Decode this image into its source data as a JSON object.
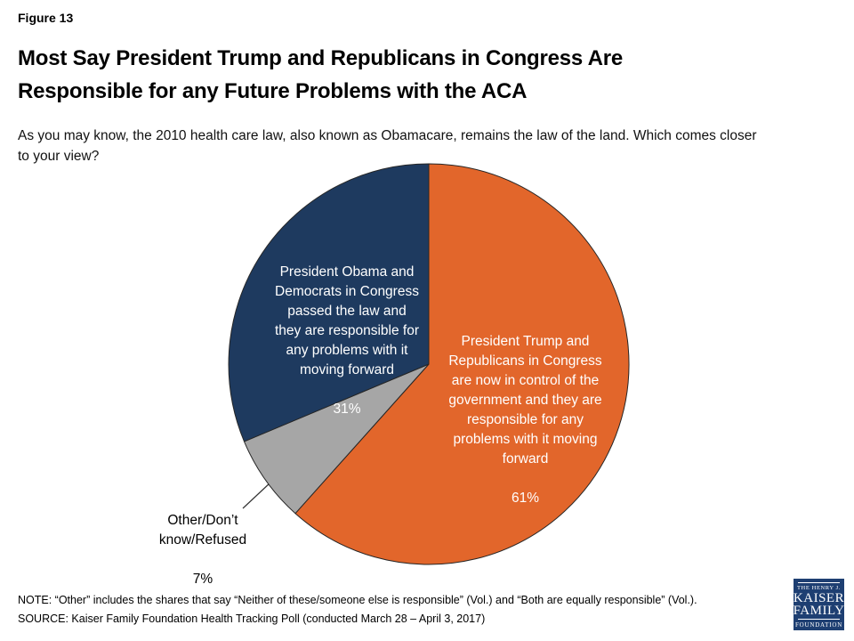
{
  "header": {
    "figure_label": "Figure 13",
    "title_lines": [
      "Most Say President Trump and Republicans in Congress Are",
      "Responsible for any Future Problems with the ACA"
    ],
    "question_lines": [
      "As you may know, the 2010 health care law, also known as Obamacare, remains the law of the land. Which comes closer",
      "to your view?"
    ]
  },
  "chart_data": {
    "type": "pie",
    "title": "Most Say President Trump and Republicans in Congress Are Responsible for any Future Problems with the ACA",
    "start_angle_deg": 0,
    "direction": "clockwise",
    "legend_position": "none",
    "outline_color": "#262626",
    "slices": [
      {
        "id": "trump",
        "label": "President Trump and Republicans in Congress are now in control of the government and they are responsible for any problems with it moving forward",
        "label_lines": [
          "President Trump and",
          "Republicans in Congress",
          "are now in control of the",
          "government and they are",
          "responsible for any",
          "problems with it moving",
          "forward"
        ],
        "pct_label": "61%",
        "value": 61,
        "color": "#E2662B",
        "text_color": "#FFFFFF",
        "label_placement": "inside"
      },
      {
        "id": "other",
        "label": "Other/Don’t know/Refused",
        "label_lines": [
          "Other/Don’t",
          "know/Refused"
        ],
        "pct_label": "7%",
        "value": 7,
        "color": "#A6A6A6",
        "text_color": "#000000",
        "label_placement": "outside"
      },
      {
        "id": "obama",
        "label": "President Obama and Democrats in Congress passed the law and they are responsible for any problems with it moving forward",
        "label_lines": [
          "President Obama and",
          "Democrats in Congress",
          "passed the law and",
          "they are responsible for",
          "any problems with it",
          "moving forward"
        ],
        "pct_label": "31%",
        "value": 31,
        "color": "#1E3A5F",
        "text_color": "#FFFFFF",
        "label_placement": "inside"
      }
    ]
  },
  "footer": {
    "note": "NOTE: “Other” includes the shares that say “Neither of these/someone else is responsible” (Vol.) and “Both are equally responsible” (Vol.).",
    "source": "SOURCE: Kaiser Family Foundation Health Tracking Poll (conducted March 28 – April 3, 2017)"
  },
  "logo": {
    "top": "THE HENRY J.",
    "name1": "KAISER",
    "name2": "FAMILY",
    "bottom": "FOUNDATION"
  }
}
